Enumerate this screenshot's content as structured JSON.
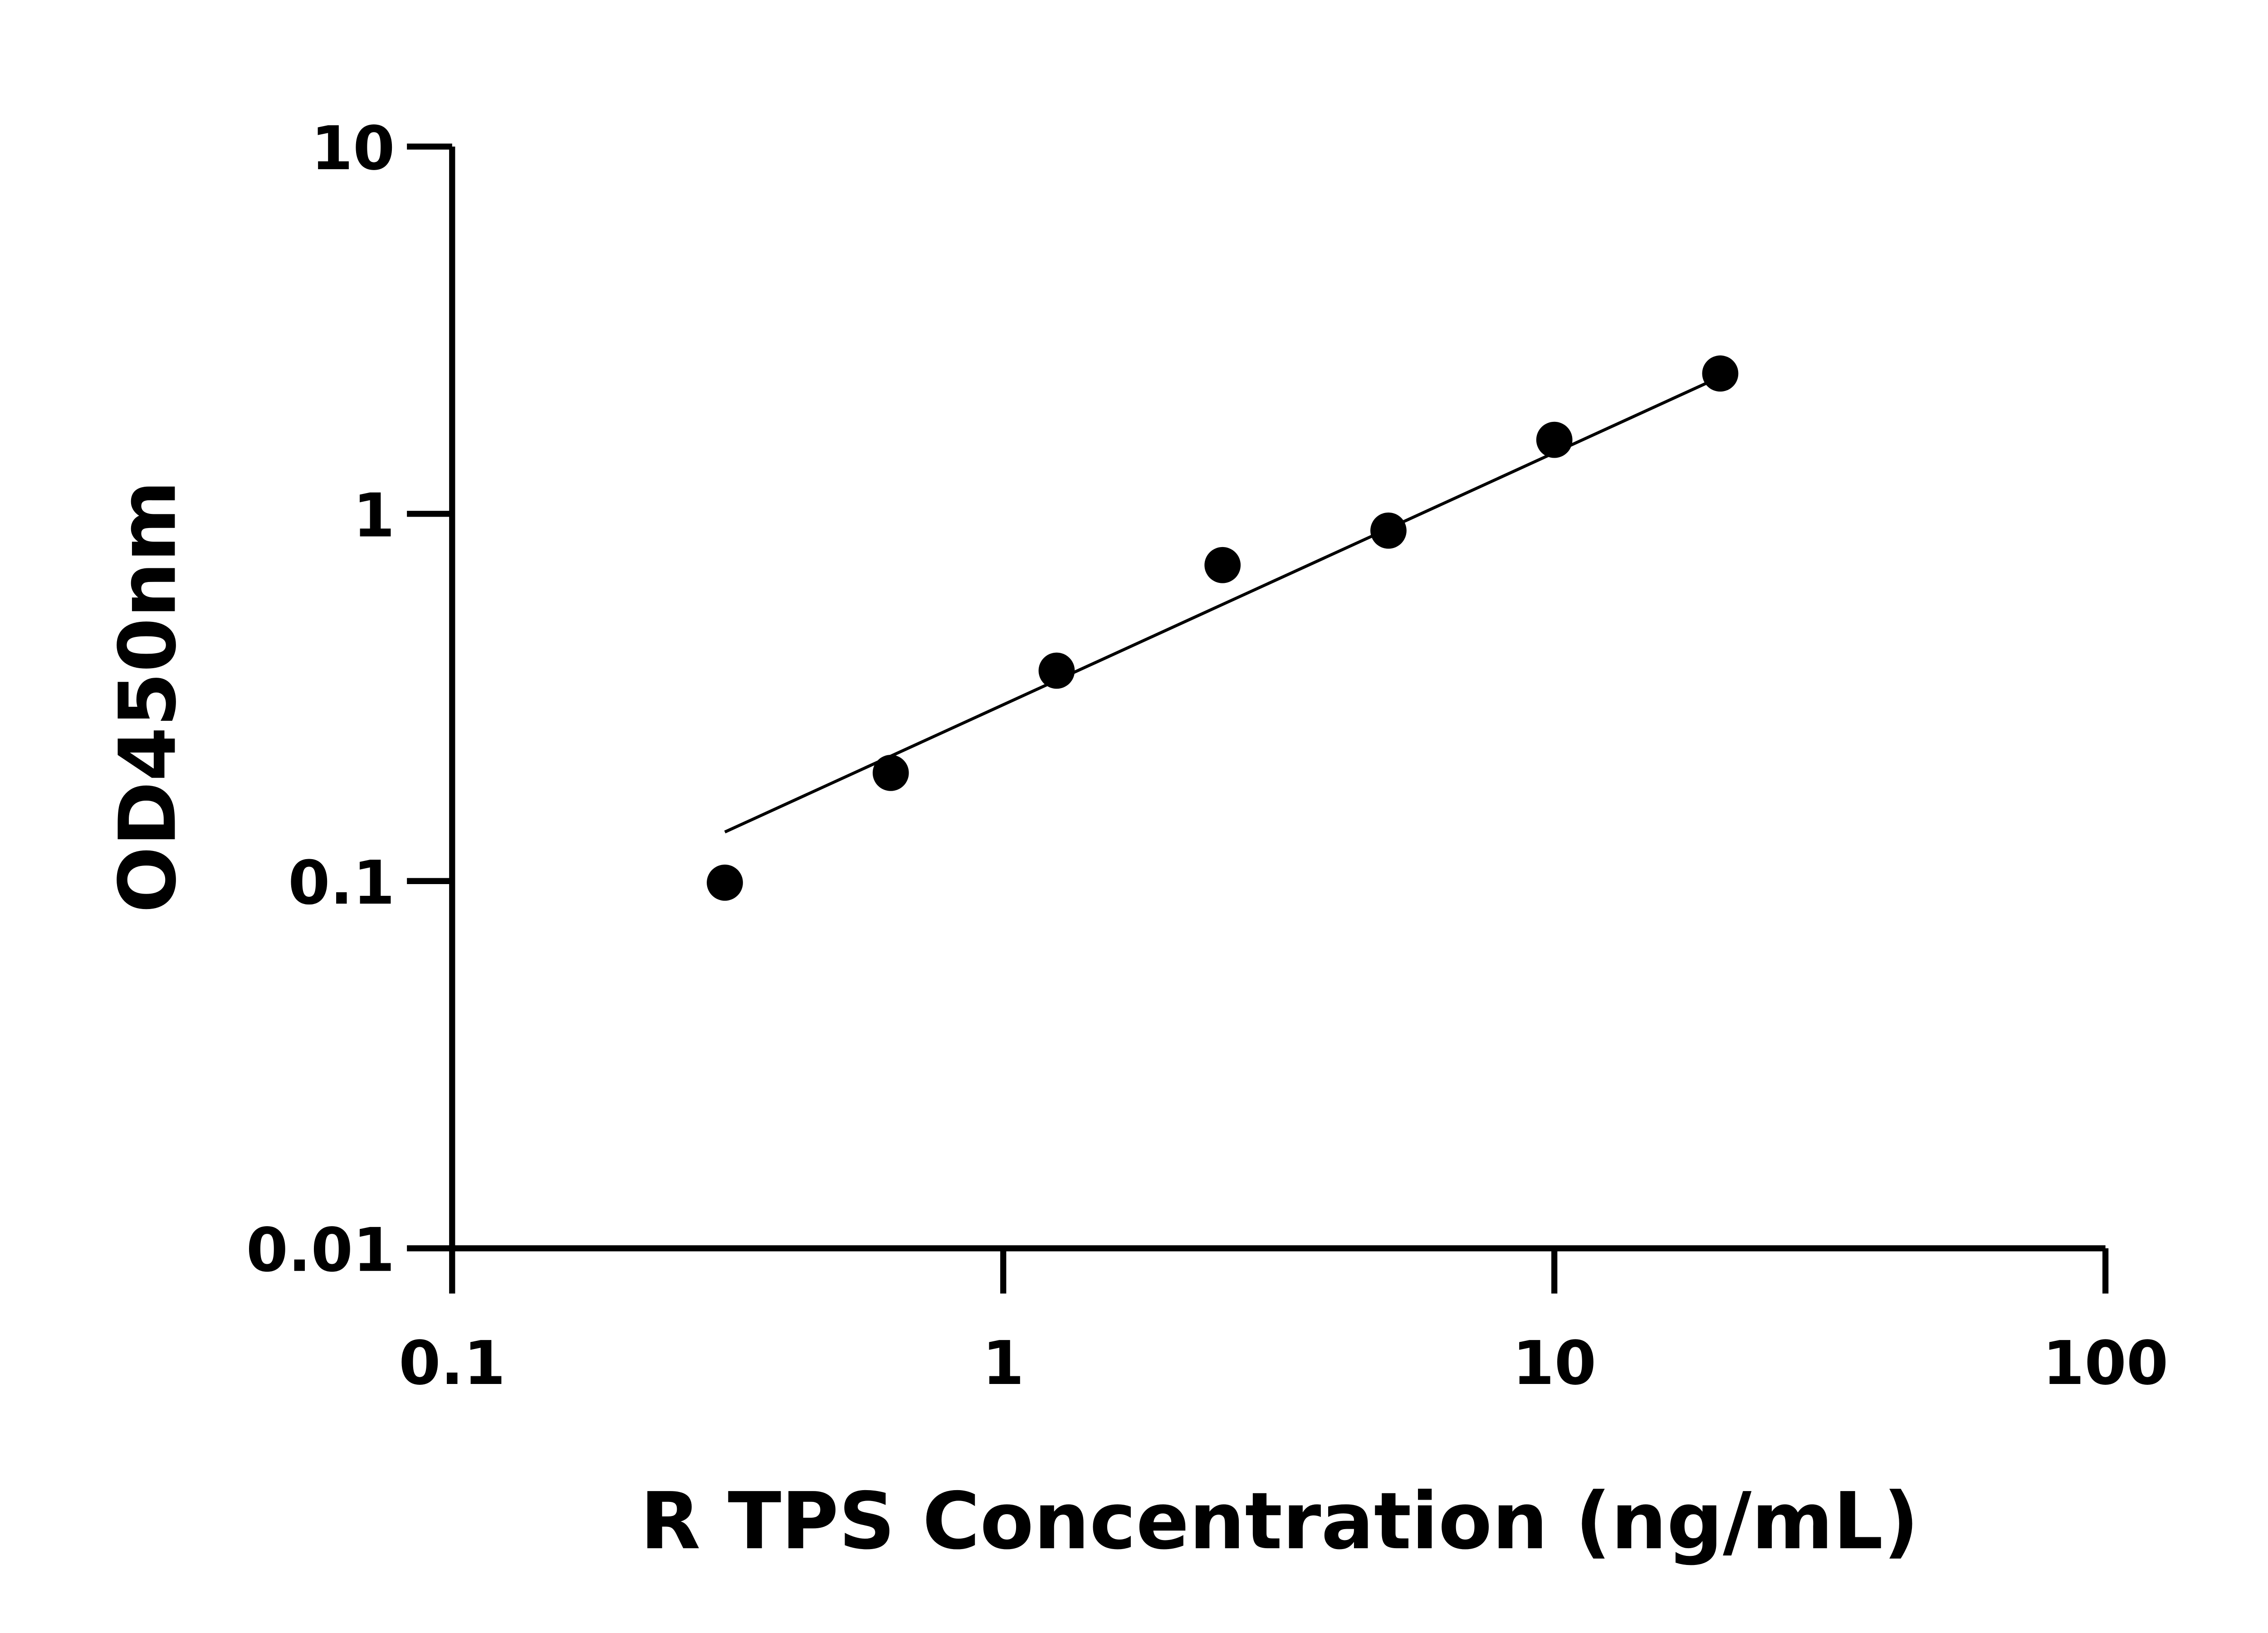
{
  "chart_data": {
    "type": "scatter",
    "title": "",
    "xlabel": "R TPS Concentration (ng/mL)",
    "ylabel": "OD450nm",
    "xscale": "log",
    "yscale": "log",
    "xlim": [
      0.1,
      100
    ],
    "ylim": [
      0.01,
      10
    ],
    "x_ticks": [
      "0.1",
      "1",
      "10",
      "100"
    ],
    "y_ticks": [
      "0.01",
      "0.1",
      "1",
      "10"
    ],
    "grid": false,
    "legend": "none",
    "marker_color": "#000000",
    "points": {
      "x": [
        0.3125,
        0.625,
        1.25,
        2.5,
        5,
        10,
        20
      ],
      "y": [
        0.099,
        0.197,
        0.374,
        0.725,
        0.9,
        1.59,
        2.41
      ]
    },
    "fit_line": {
      "x": [
        0.3125,
        20
      ],
      "y": [
        0.136,
        2.36
      ]
    }
  }
}
